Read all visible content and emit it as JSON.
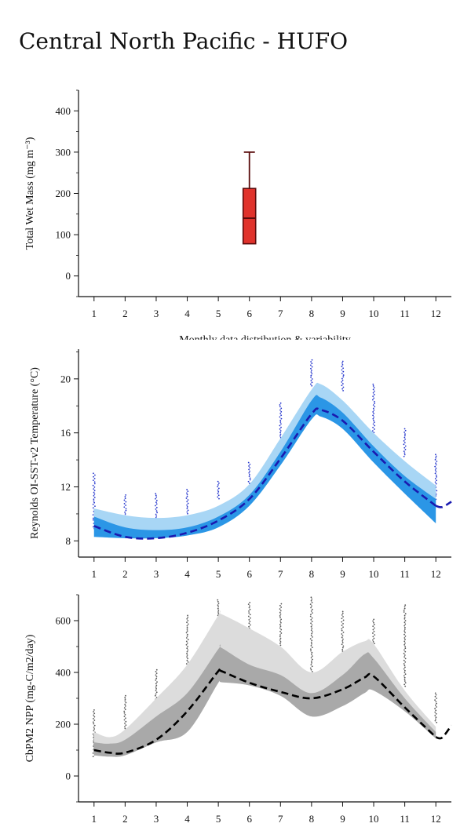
{
  "page": {
    "title": "Central North Pacific - HUFO"
  },
  "chart_data": [
    {
      "type": "box",
      "ylabel": "Total Wet Mass (mg m⁻³)",
      "xlabel": "Monthly data distribution & variability",
      "xlim": [
        0.5,
        12.5
      ],
      "ylim": [
        -50,
        450
      ],
      "x_ticks": [
        1,
        2,
        3,
        4,
        5,
        6,
        7,
        8,
        9,
        10,
        11,
        12
      ],
      "y_ticks": [
        0,
        100,
        200,
        300,
        400
      ],
      "boxes": [
        {
          "month": 6,
          "whisker_low": 78,
          "q1": 78,
          "median": 140,
          "q3": 212,
          "whisker_high": 300
        }
      ],
      "colors": {
        "box_fill": "#e0322b",
        "box_edge": "#5a0c0c"
      }
    },
    {
      "type": "area",
      "ylabel": "Reynolds OI-SST-v2 Temperature (°C)",
      "xlim": [
        0.5,
        12.5
      ],
      "ylim": [
        6.8,
        22.2
      ],
      "x_ticks": [
        1,
        2,
        3,
        4,
        5,
        6,
        7,
        8,
        9,
        10,
        11,
        12
      ],
      "y_ticks": [
        8,
        12,
        16,
        20
      ],
      "x": [
        1,
        2,
        3,
        4,
        5,
        6,
        7,
        8,
        8.3,
        9,
        10,
        11,
        12
      ],
      "outer_upper": [
        10.4,
        9.9,
        9.7,
        9.9,
        10.6,
        12.2,
        15.6,
        19.2,
        19.6,
        18.4,
        16.0,
        13.9,
        12.1
      ],
      "outer_lower": [
        8.3,
        8.2,
        8.2,
        8.4,
        9.2,
        10.7,
        13.7,
        17.2,
        17.4,
        16.5,
        14.2,
        12.0,
        10.4
      ],
      "inner_upper": [
        9.8,
        9.0,
        8.8,
        9.0,
        9.8,
        11.4,
        14.6,
        18.4,
        18.6,
        17.5,
        15.0,
        12.8,
        11.1
      ],
      "inner_lower": [
        8.3,
        8.2,
        8.2,
        8.4,
        9.0,
        10.6,
        13.6,
        17.0,
        17.2,
        16.3,
        13.8,
        11.5,
        9.3
      ],
      "mean": [
        9.1,
        8.3,
        8.2,
        8.6,
        9.5,
        11.1,
        14.1,
        17.4,
        17.7,
        16.9,
        14.6,
        12.4,
        10.6
      ],
      "mean_tail": [
        [
          12.0,
          10.6
        ],
        [
          12.2,
          10.5
        ],
        [
          12.5,
          10.9
        ]
      ],
      "points": [
        {
          "x": 1,
          "ymin": 8.8,
          "ymax": 13.0
        },
        {
          "x": 2,
          "ymin": 9.6,
          "ymax": 11.4
        },
        {
          "x": 3,
          "ymin": 9.6,
          "ymax": 11.5
        },
        {
          "x": 4,
          "ymin": 10.0,
          "ymax": 11.8
        },
        {
          "x": 5,
          "ymin": 11.0,
          "ymax": 12.4
        },
        {
          "x": 6,
          "ymin": 12.2,
          "ymax": 13.8
        },
        {
          "x": 7,
          "ymin": 15.6,
          "ymax": 18.2
        },
        {
          "x": 8,
          "ymin": 19.4,
          "ymax": 21.4
        },
        {
          "x": 9,
          "ymin": 19.1,
          "ymax": 21.3
        },
        {
          "x": 10,
          "ymin": 15.8,
          "ymax": 19.6
        },
        {
          "x": 11,
          "ymin": 14.2,
          "ymax": 16.3
        },
        {
          "x": 12,
          "ymin": 11.0,
          "ymax": 14.4
        }
      ],
      "colors": {
        "outer": "#a8d6f5",
        "inner": "#2b96e6",
        "mean": "#1a1ab0",
        "points": "#2233cc"
      }
    },
    {
      "type": "area",
      "ylabel": "CbPM2 NPP (mg-C/m2/day)",
      "xlim": [
        0.5,
        12.5
      ],
      "ylim": [
        -100,
        700
      ],
      "x_ticks": [
        1,
        2,
        3,
        4,
        5,
        6,
        7,
        8,
        9,
        10,
        11,
        12
      ],
      "y_ticks": [
        0,
        200,
        400,
        600
      ],
      "x": [
        1,
        1.5,
        2,
        3,
        4,
        5,
        5.1,
        6,
        7,
        8,
        9,
        9.7,
        10,
        11,
        12
      ],
      "outer_upper": [
        170,
        150,
        180,
        300,
        430,
        620,
        625,
        570,
        500,
        400,
        480,
        520,
        510,
        330,
        190
      ],
      "outer_lower": [
        80,
        75,
        80,
        130,
        170,
        360,
        362,
        350,
        310,
        230,
        270,
        320,
        330,
        250,
        145
      ],
      "inner_upper": [
        130,
        125,
        140,
        230,
        320,
        490,
        495,
        430,
        390,
        320,
        390,
        470,
        455,
        300,
        170
      ],
      "inner_lower": [
        80,
        75,
        80,
        130,
        170,
        360,
        362,
        350,
        310,
        230,
        270,
        320,
        330,
        250,
        145
      ],
      "mean": [
        100,
        90,
        90,
        140,
        250,
        405,
        405,
        360,
        325,
        300,
        335,
        380,
        385,
        265,
        150
      ],
      "mean_tail": [
        [
          12.0,
          150
        ],
        [
          12.2,
          148
        ],
        [
          12.5,
          195
        ]
      ],
      "points": [
        {
          "x": 1,
          "ymin": 70,
          "ymax": 255
        },
        {
          "x": 2,
          "ymin": 170,
          "ymax": 310
        },
        {
          "x": 3,
          "ymin": 250,
          "ymax": 410
        },
        {
          "x": 4,
          "ymin": 400,
          "ymax": 620
        },
        {
          "x": 5,
          "ymin": 580,
          "ymax": 680
        },
        {
          "x": 6,
          "ymin": 540,
          "ymax": 670
        },
        {
          "x": 7,
          "ymin": 440,
          "ymax": 665
        },
        {
          "x": 8,
          "ymin": 390,
          "ymax": 690
        },
        {
          "x": 9,
          "ymin": 480,
          "ymax": 635
        },
        {
          "x": 10,
          "ymin": 430,
          "ymax": 605
        },
        {
          "x": 11,
          "ymin": 340,
          "ymax": 660
        },
        {
          "x": 12,
          "ymin": 200,
          "ymax": 320
        }
      ],
      "colors": {
        "outer": "#dcdcdc",
        "inner": "#a9a9a9",
        "mean": "#000000",
        "points": "#555555"
      }
    }
  ]
}
